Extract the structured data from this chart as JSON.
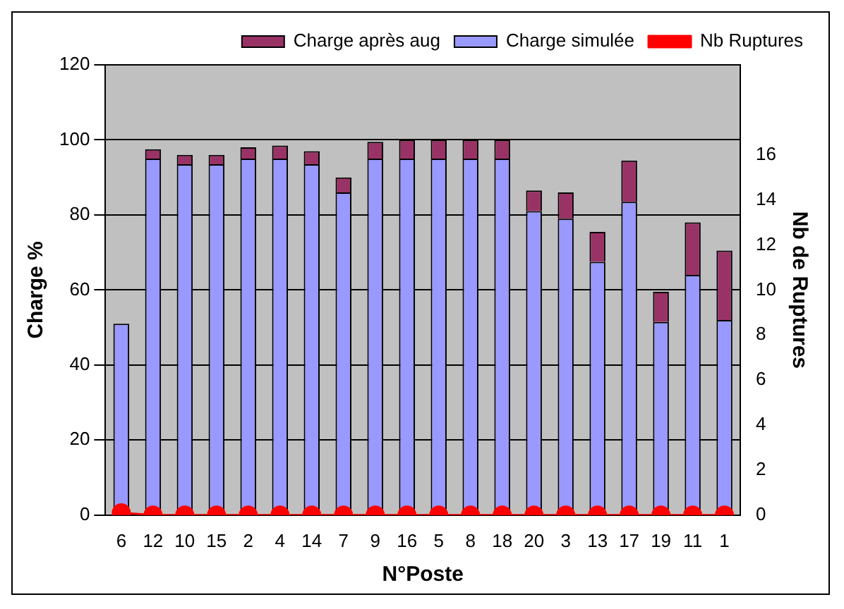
{
  "chart_data": {
    "type": "bar",
    "xlabel": "N°Poste",
    "ylabel": "Charge %",
    "y2label": "Nb de Ruptures",
    "categories": [
      "6",
      "12",
      "10",
      "15",
      "2",
      "4",
      "14",
      "7",
      "9",
      "16",
      "5",
      "8",
      "18",
      "20",
      "3",
      "13",
      "17",
      "19",
      "11",
      "1"
    ],
    "stacked": true,
    "series": [
      {
        "name": "Charge simulée",
        "color": "#9999ff",
        "values": [
          51,
          95,
          93.5,
          93.5,
          95,
          95,
          93.5,
          86,
          95,
          95,
          95,
          95,
          95,
          81,
          79,
          67.5,
          83.5,
          51.5,
          64,
          52
        ]
      },
      {
        "name": "Charge après aug",
        "color": "#993366",
        "values": [
          0,
          2.5,
          2.5,
          2.5,
          3,
          3.5,
          3.5,
          4,
          4.5,
          5,
          5,
          5,
          5,
          5.5,
          7,
          8,
          11,
          8,
          14,
          18.5
        ]
      },
      {
        "name": "Nb Ruptures",
        "type": "line",
        "axis": "y2",
        "color": "#ff0000",
        "marker": "circle",
        "values": [
          0.1,
          0,
          0,
          0,
          0,
          0,
          0,
          0,
          0,
          0,
          0,
          0,
          0,
          0,
          0,
          0,
          0,
          0,
          0,
          0
        ]
      }
    ],
    "ylim": [
      0,
      120
    ],
    "yticks": [
      0,
      20,
      40,
      60,
      80,
      100,
      120
    ],
    "y2lim": [
      0,
      20
    ],
    "y2ticks": [
      0,
      2,
      4,
      6,
      8,
      10,
      12,
      14,
      16
    ],
    "grid": "y",
    "legend": "top right"
  }
}
